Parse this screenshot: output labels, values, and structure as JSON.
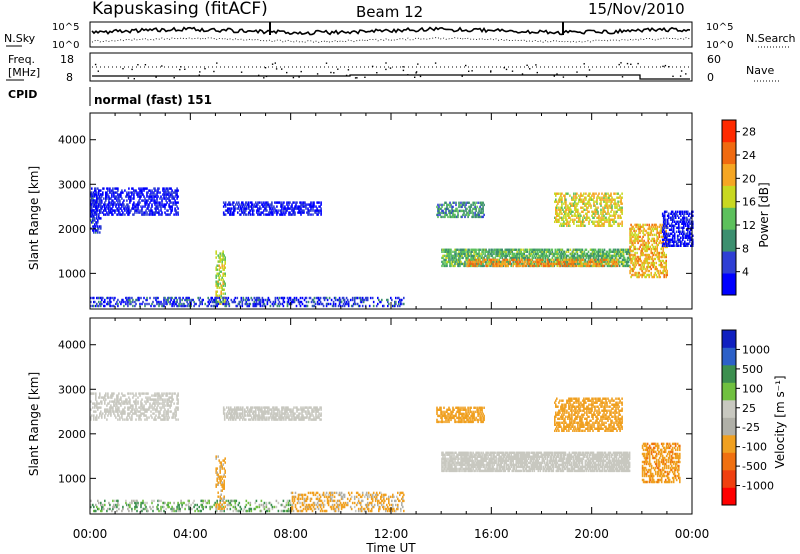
{
  "header": {
    "station": "Kapuskasing (fitACF)",
    "beam": "Beam 12",
    "date": "15/Nov/2010"
  },
  "top_panels": {
    "nsky_label": "N.Sky",
    "nsearch_label": "N.Search",
    "noise_ticks": [
      "10^5",
      "10^0"
    ],
    "freq_label_1": "Freq.",
    "freq_label_2": "[MHz]",
    "freq_ticks": [
      "18",
      "8"
    ],
    "nave_label": "Nave",
    "nave_ticks": [
      "60",
      "0"
    ],
    "cpid_label": "CPID",
    "cpid_value": "normal (fast) 151"
  },
  "colors": {
    "power_scale": [
      "#0000ff",
      "#2f3fd4",
      "#3c8f6f",
      "#5cc05c",
      "#c8d820",
      "#f5a623",
      "#f06a10",
      "#ff2a00"
    ],
    "velocity_scale": [
      "#1020c0",
      "#2c60c8",
      "#3c8f4f",
      "#70c040",
      "#c8c8c0",
      "#b0b0a8",
      "#f0a020",
      "#f07010",
      "#f04010",
      "#ff0000"
    ],
    "ground_scatter": "#c8c8c0"
  },
  "chart_data": [
    {
      "type": "heatmap",
      "title": "Power",
      "ylabel": "Slant Range [km]",
      "ylim": [
        200,
        4600
      ],
      "yticks": [
        "1000",
        "2000",
        "3000",
        "4000"
      ],
      "xlim_hours": [
        0,
        24
      ],
      "colorbar_label": "Power [dB]",
      "colorbar_ticks": [
        "4",
        "8",
        "12",
        "16",
        "20",
        "24",
        "28"
      ],
      "colorbar_range": [
        0,
        30
      ],
      "regions": [
        {
          "t": [
            0.0,
            3.5
          ],
          "r": [
            2300,
            2900
          ],
          "value": 3,
          "density": 0.45
        },
        {
          "t": [
            0.0,
            0.4
          ],
          "r": [
            1900,
            2800
          ],
          "value": 4,
          "density": 0.5
        },
        {
          "t": [
            5.3,
            9.2
          ],
          "r": [
            2300,
            2600
          ],
          "value": 3,
          "density": 0.55
        },
        {
          "t": [
            5.0,
            5.4
          ],
          "r": [
            300,
            1500
          ],
          "value": 16,
          "density": 0.4
        },
        {
          "t": [
            0.0,
            12.5
          ],
          "r": [
            250,
            450
          ],
          "value": 5,
          "density": 0.35
        },
        {
          "t": [
            14.0,
            21.5
          ],
          "r": [
            1150,
            1550
          ],
          "value": 12,
          "density": 0.7
        },
        {
          "t": [
            15.0,
            21.0
          ],
          "r": [
            1150,
            1300
          ],
          "value": 22,
          "density": 0.45
        },
        {
          "t": [
            13.8,
            15.7
          ],
          "r": [
            2250,
            2600
          ],
          "value": 10,
          "density": 0.5
        },
        {
          "t": [
            18.5,
            21.2
          ],
          "r": [
            2050,
            2800
          ],
          "value": 18,
          "density": 0.45
        },
        {
          "t": [
            21.5,
            23.0
          ],
          "r": [
            900,
            2100
          ],
          "value": 20,
          "density": 0.45
        },
        {
          "t": [
            22.8,
            24.0
          ],
          "r": [
            1600,
            2400
          ],
          "value": 3,
          "density": 0.5
        }
      ]
    },
    {
      "type": "heatmap",
      "title": "Velocity",
      "ylabel": "Slant Range [km]",
      "xlabel": "Time UT",
      "ylim": [
        200,
        4600
      ],
      "yticks": [
        "1000",
        "2000",
        "3000",
        "4000"
      ],
      "xticks": [
        "00:00",
        "04:00",
        "08:00",
        "12:00",
        "16:00",
        "20:00",
        "00:00"
      ],
      "colorbar_label": "Velocity [m s⁻¹]",
      "colorbar_ticks": [
        "1000",
        "500",
        "100",
        "25",
        "-25",
        "-100",
        "-500",
        "-1000"
      ],
      "regions": [
        {
          "t": [
            0.0,
            3.5
          ],
          "r": [
            2300,
            2900
          ],
          "value": 0,
          "density": 0.4
        },
        {
          "t": [
            5.3,
            9.2
          ],
          "r": [
            2300,
            2600
          ],
          "value": 0,
          "density": 0.6
        },
        {
          "t": [
            14.0,
            21.5
          ],
          "r": [
            1150,
            1600
          ],
          "value": 0,
          "density": 0.75
        },
        {
          "t": [
            8.0,
            12.5
          ],
          "r": [
            250,
            700
          ],
          "value": -150,
          "density": 0.35
        },
        {
          "t": [
            0.0,
            8.0
          ],
          "r": [
            250,
            500
          ],
          "value": 60,
          "density": 0.25
        },
        {
          "t": [
            13.8,
            15.7
          ],
          "r": [
            2250,
            2600
          ],
          "value": -300,
          "density": 0.5
        },
        {
          "t": [
            18.5,
            21.2
          ],
          "r": [
            2050,
            2800
          ],
          "value": -300,
          "density": 0.5
        },
        {
          "t": [
            22.0,
            23.5
          ],
          "r": [
            900,
            1800
          ],
          "value": -400,
          "density": 0.5
        },
        {
          "t": [
            5.0,
            5.4
          ],
          "r": [
            300,
            1500
          ],
          "value": -200,
          "density": 0.35
        }
      ]
    }
  ]
}
